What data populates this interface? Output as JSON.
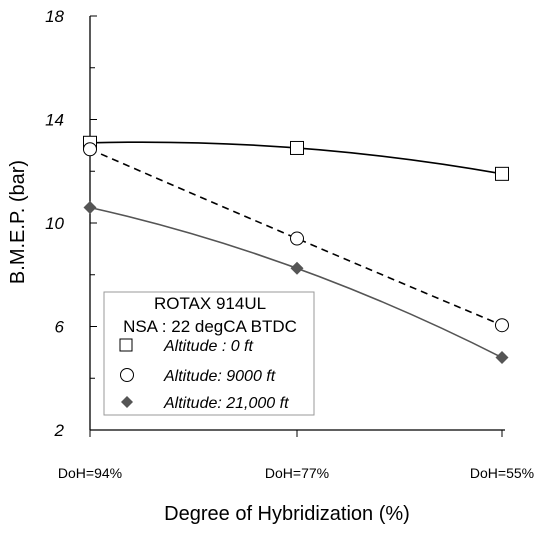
{
  "chart_data": {
    "type": "line",
    "title": "",
    "xlabel": "Degree of Hybridization (%)",
    "ylabel": "B.M.E.P. (bar)",
    "categories": [
      "DoH=94%",
      "DoH=77%",
      "DoH=55%"
    ],
    "ylim": [
      2,
      18
    ],
    "yticks": [
      2,
      6,
      10,
      14,
      18
    ],
    "grid": false,
    "legend": {
      "placement": "bottom-left",
      "title_lines": [
        "ROTAX 914UL",
        "NSA : 22 degCA BTDC"
      ]
    },
    "series": [
      {
        "name": "Altitude : 0 ft",
        "values": [
          13.1,
          12.9,
          11.9
        ],
        "marker": "open-square",
        "line": "solid",
        "line_color": "#000000"
      },
      {
        "name": "Altitude: 9000 ft",
        "values": [
          12.85,
          9.4,
          6.05
        ],
        "marker": "open-circle",
        "line": "dashed",
        "line_color": "#000000"
      },
      {
        "name": "Altitude: 21,000 ft",
        "values": [
          10.6,
          8.25,
          4.8
        ],
        "marker": "filled-diamond",
        "line": "solid",
        "line_color": "#555555"
      }
    ]
  }
}
